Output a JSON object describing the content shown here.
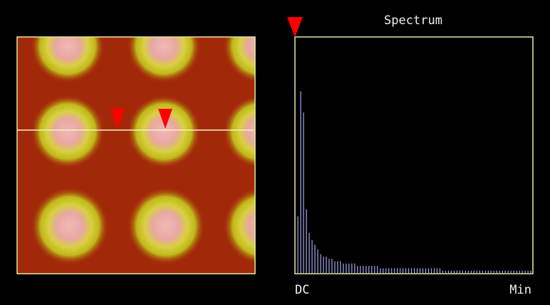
{
  "chart_data": {
    "type": "bar",
    "title": "Spectrum",
    "x_start_label": "DC",
    "x_end_label": "Min",
    "values": [
      24,
      77,
      68,
      27,
      17,
      14,
      12,
      10,
      8,
      7,
      7,
      6,
      6,
      5,
      5,
      5,
      4,
      4,
      4,
      4,
      4,
      3,
      3,
      3,
      3,
      3,
      3,
      3,
      3,
      2,
      2,
      2,
      2,
      2,
      2,
      2,
      2,
      2,
      2,
      2,
      2,
      2,
      2,
      2,
      2,
      2,
      2,
      2,
      2,
      2,
      2,
      1,
      1,
      1,
      1,
      1,
      1,
      1,
      1,
      1,
      1,
      1,
      1,
      1,
      1,
      1,
      1,
      1,
      1,
      1,
      1,
      1,
      1,
      1,
      1,
      1,
      1,
      1,
      1,
      1,
      1,
      1,
      1
    ],
    "color": "#a6aaf0",
    "ylim": [
      0,
      100
    ]
  }
}
